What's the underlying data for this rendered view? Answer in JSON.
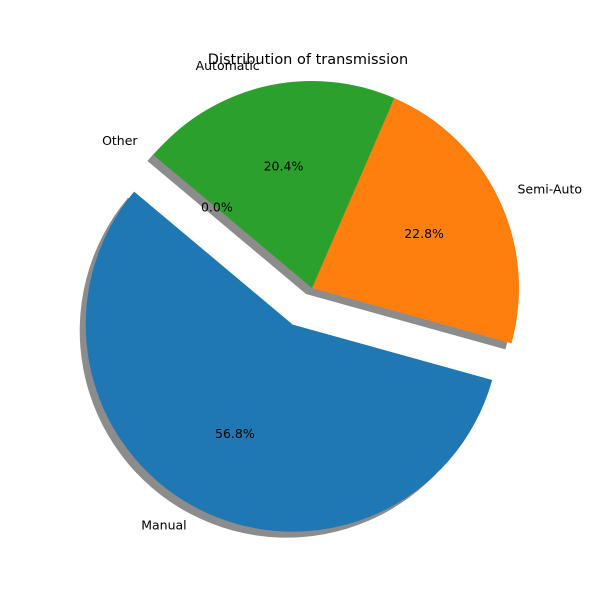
{
  "chart_data": {
    "type": "pie",
    "title": "Distribution of transmission",
    "slices": [
      {
        "label": "Manual",
        "value": 56.8,
        "pct_label": "56.8%",
        "color": "#1f77b4",
        "exploded": true
      },
      {
        "label": "Semi-Auto",
        "value": 22.8,
        "pct_label": "22.8%",
        "color": "#ff7f0e",
        "exploded": false
      },
      {
        "label": "Automatic",
        "value": 20.4,
        "pct_label": "20.4%",
        "color": "#2ca02c",
        "exploded": false
      },
      {
        "label": "Other",
        "value": 0.0,
        "pct_label": "0.0%",
        "color": "#d62728",
        "exploded": false
      }
    ],
    "shadow": true,
    "legend": "none"
  }
}
